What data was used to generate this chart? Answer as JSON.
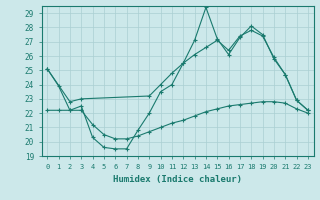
{
  "xlabel": "Humidex (Indice chaleur)",
  "x_ticks": [
    0,
    1,
    2,
    3,
    4,
    5,
    6,
    7,
    8,
    9,
    10,
    11,
    12,
    13,
    14,
    15,
    16,
    17,
    18,
    19,
    20,
    21,
    22,
    23
  ],
  "ylim": [
    19,
    29.5
  ],
  "yticks": [
    19,
    20,
    21,
    22,
    23,
    24,
    25,
    26,
    27,
    28,
    29
  ],
  "line1": {
    "x": [
      0,
      1,
      2,
      3,
      4,
      5,
      6,
      7,
      8,
      9,
      10,
      11,
      12,
      13,
      14,
      15,
      16,
      17,
      18,
      19,
      20,
      21,
      22,
      23
    ],
    "y": [
      25.1,
      23.9,
      22.2,
      22.5,
      20.3,
      19.6,
      19.5,
      19.5,
      20.8,
      22.0,
      23.5,
      24.0,
      25.5,
      27.1,
      29.4,
      27.2,
      26.1,
      27.3,
      28.1,
      27.5,
      25.8,
      24.7,
      22.9,
      22.2
    ]
  },
  "line2": {
    "x": [
      0,
      2,
      3,
      9,
      10,
      11,
      12,
      13,
      14,
      15,
      16,
      17,
      18,
      19,
      20,
      21,
      22,
      23
    ],
    "y": [
      25.1,
      22.8,
      23.0,
      23.2,
      24.0,
      24.8,
      25.5,
      26.1,
      26.6,
      27.1,
      26.4,
      27.4,
      27.8,
      27.4,
      25.9,
      24.7,
      22.9,
      22.2
    ]
  },
  "line3": {
    "x": [
      0,
      1,
      2,
      3,
      4,
      5,
      6,
      7,
      8,
      9,
      10,
      11,
      12,
      13,
      14,
      15,
      16,
      17,
      18,
      19,
      20,
      21,
      22,
      23
    ],
    "y": [
      22.2,
      22.2,
      22.2,
      22.2,
      21.2,
      20.5,
      20.2,
      20.2,
      20.4,
      20.7,
      21.0,
      21.3,
      21.5,
      21.8,
      22.1,
      22.3,
      22.5,
      22.6,
      22.7,
      22.8,
      22.8,
      22.7,
      22.3,
      22.0
    ]
  },
  "background_color": "#cce8ea",
  "grid_color": "#aacfd2",
  "line_color": "#1a7a6e"
}
